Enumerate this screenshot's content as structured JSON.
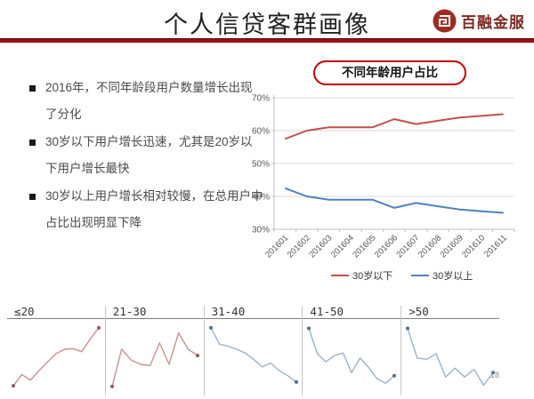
{
  "header": {
    "title": "个人信贷客群画像",
    "logo_text": "百融金服",
    "accent_color": "#a00d12",
    "logo_color": "#9e2b23"
  },
  "bullets": [
    "2016年，不同年龄段用户数量增长出现了分化",
    "30岁以下用户增长迅速，尤其是20岁以下用户增长最快",
    "30岁以上用户增长相对较慢，在总用户中占比出现明显下降"
  ],
  "chart_data": [
    {
      "type": "line",
      "title": "不同年龄用户占比",
      "categories": [
        "201601",
        "201602",
        "201603",
        "201604",
        "201605",
        "201606",
        "201607",
        "201608",
        "201609",
        "201610",
        "201611"
      ],
      "series": [
        {
          "name": "30岁以下",
          "color": "#c0504d",
          "values": [
            57.5,
            60,
            61,
            61,
            61,
            63.5,
            62,
            63,
            64,
            64.5,
            65
          ]
        },
        {
          "name": "30岁以上",
          "color": "#4f81bd",
          "values": [
            42.5,
            40,
            39,
            39,
            39,
            36.5,
            38,
            37,
            36,
            35.5,
            35
          ]
        }
      ],
      "ylim": [
        30,
        70
      ],
      "ytick_step": 10,
      "ytick_format": "percent",
      "grid": true,
      "legend_position": "bottom"
    },
    {
      "type": "sparklines",
      "panels": [
        {
          "label": "≤20",
          "color": "#c49392",
          "dot_color": "#8b5a5a",
          "values": [
            4,
            22,
            13,
            28,
            42,
            55,
            62,
            63,
            58,
            78,
            96
          ]
        },
        {
          "label": "21-30",
          "color": "#c49392",
          "dot_color": "#8b5a5a",
          "values": [
            3,
            62,
            45,
            38,
            36,
            72,
            38,
            88,
            62,
            52
          ]
        },
        {
          "label": "31-40",
          "color": "#9db3c8",
          "dot_color": "#4e6d8c",
          "values": [
            96,
            70,
            67,
            62,
            56,
            46,
            34,
            40,
            28,
            20,
            10
          ]
        },
        {
          "label": "41-50",
          "color": "#9db3c8",
          "dot_color": "#4e6d8c",
          "values": [
            95,
            55,
            42,
            52,
            56,
            25,
            48,
            33,
            15,
            8,
            20
          ]
        },
        {
          "label": ">50",
          "color": "#9db3c8",
          "dot_color": "#4e6d8c",
          "values": [
            95,
            48,
            46,
            55,
            18,
            32,
            18,
            30,
            5,
            25
          ]
        }
      ]
    }
  ],
  "page_number": "18"
}
